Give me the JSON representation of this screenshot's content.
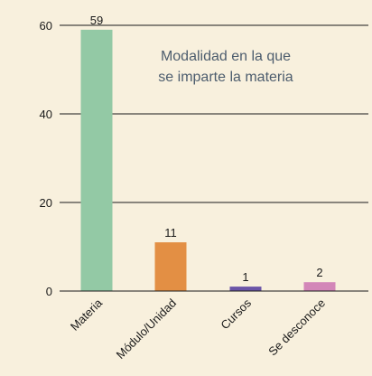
{
  "chart_data": {
    "type": "bar",
    "title_lines": [
      "Modalidad en la que",
      "se imparte la materia"
    ],
    "categories": [
      "Materia",
      "Módulo/Unidad",
      "Cursos",
      "Se desconoce"
    ],
    "values": [
      59,
      11,
      1,
      2
    ],
    "data_labels": [
      "59",
      "11",
      "1",
      "2"
    ],
    "bar_colors": [
      "#93c9a5",
      "#e38f44",
      "#6b55a8",
      "#d386b8"
    ],
    "ylim": [
      0,
      60
    ],
    "yticks": [
      0,
      20,
      40,
      60
    ],
    "ytick_labels": [
      "0",
      "20",
      "40",
      "60"
    ],
    "xlabel": "",
    "ylabel": "",
    "grid": true,
    "legend": "none"
  },
  "colors": {
    "background": "#f8f0dd",
    "gridline": "#1a1a1a",
    "title": "#4d5d6e"
  }
}
